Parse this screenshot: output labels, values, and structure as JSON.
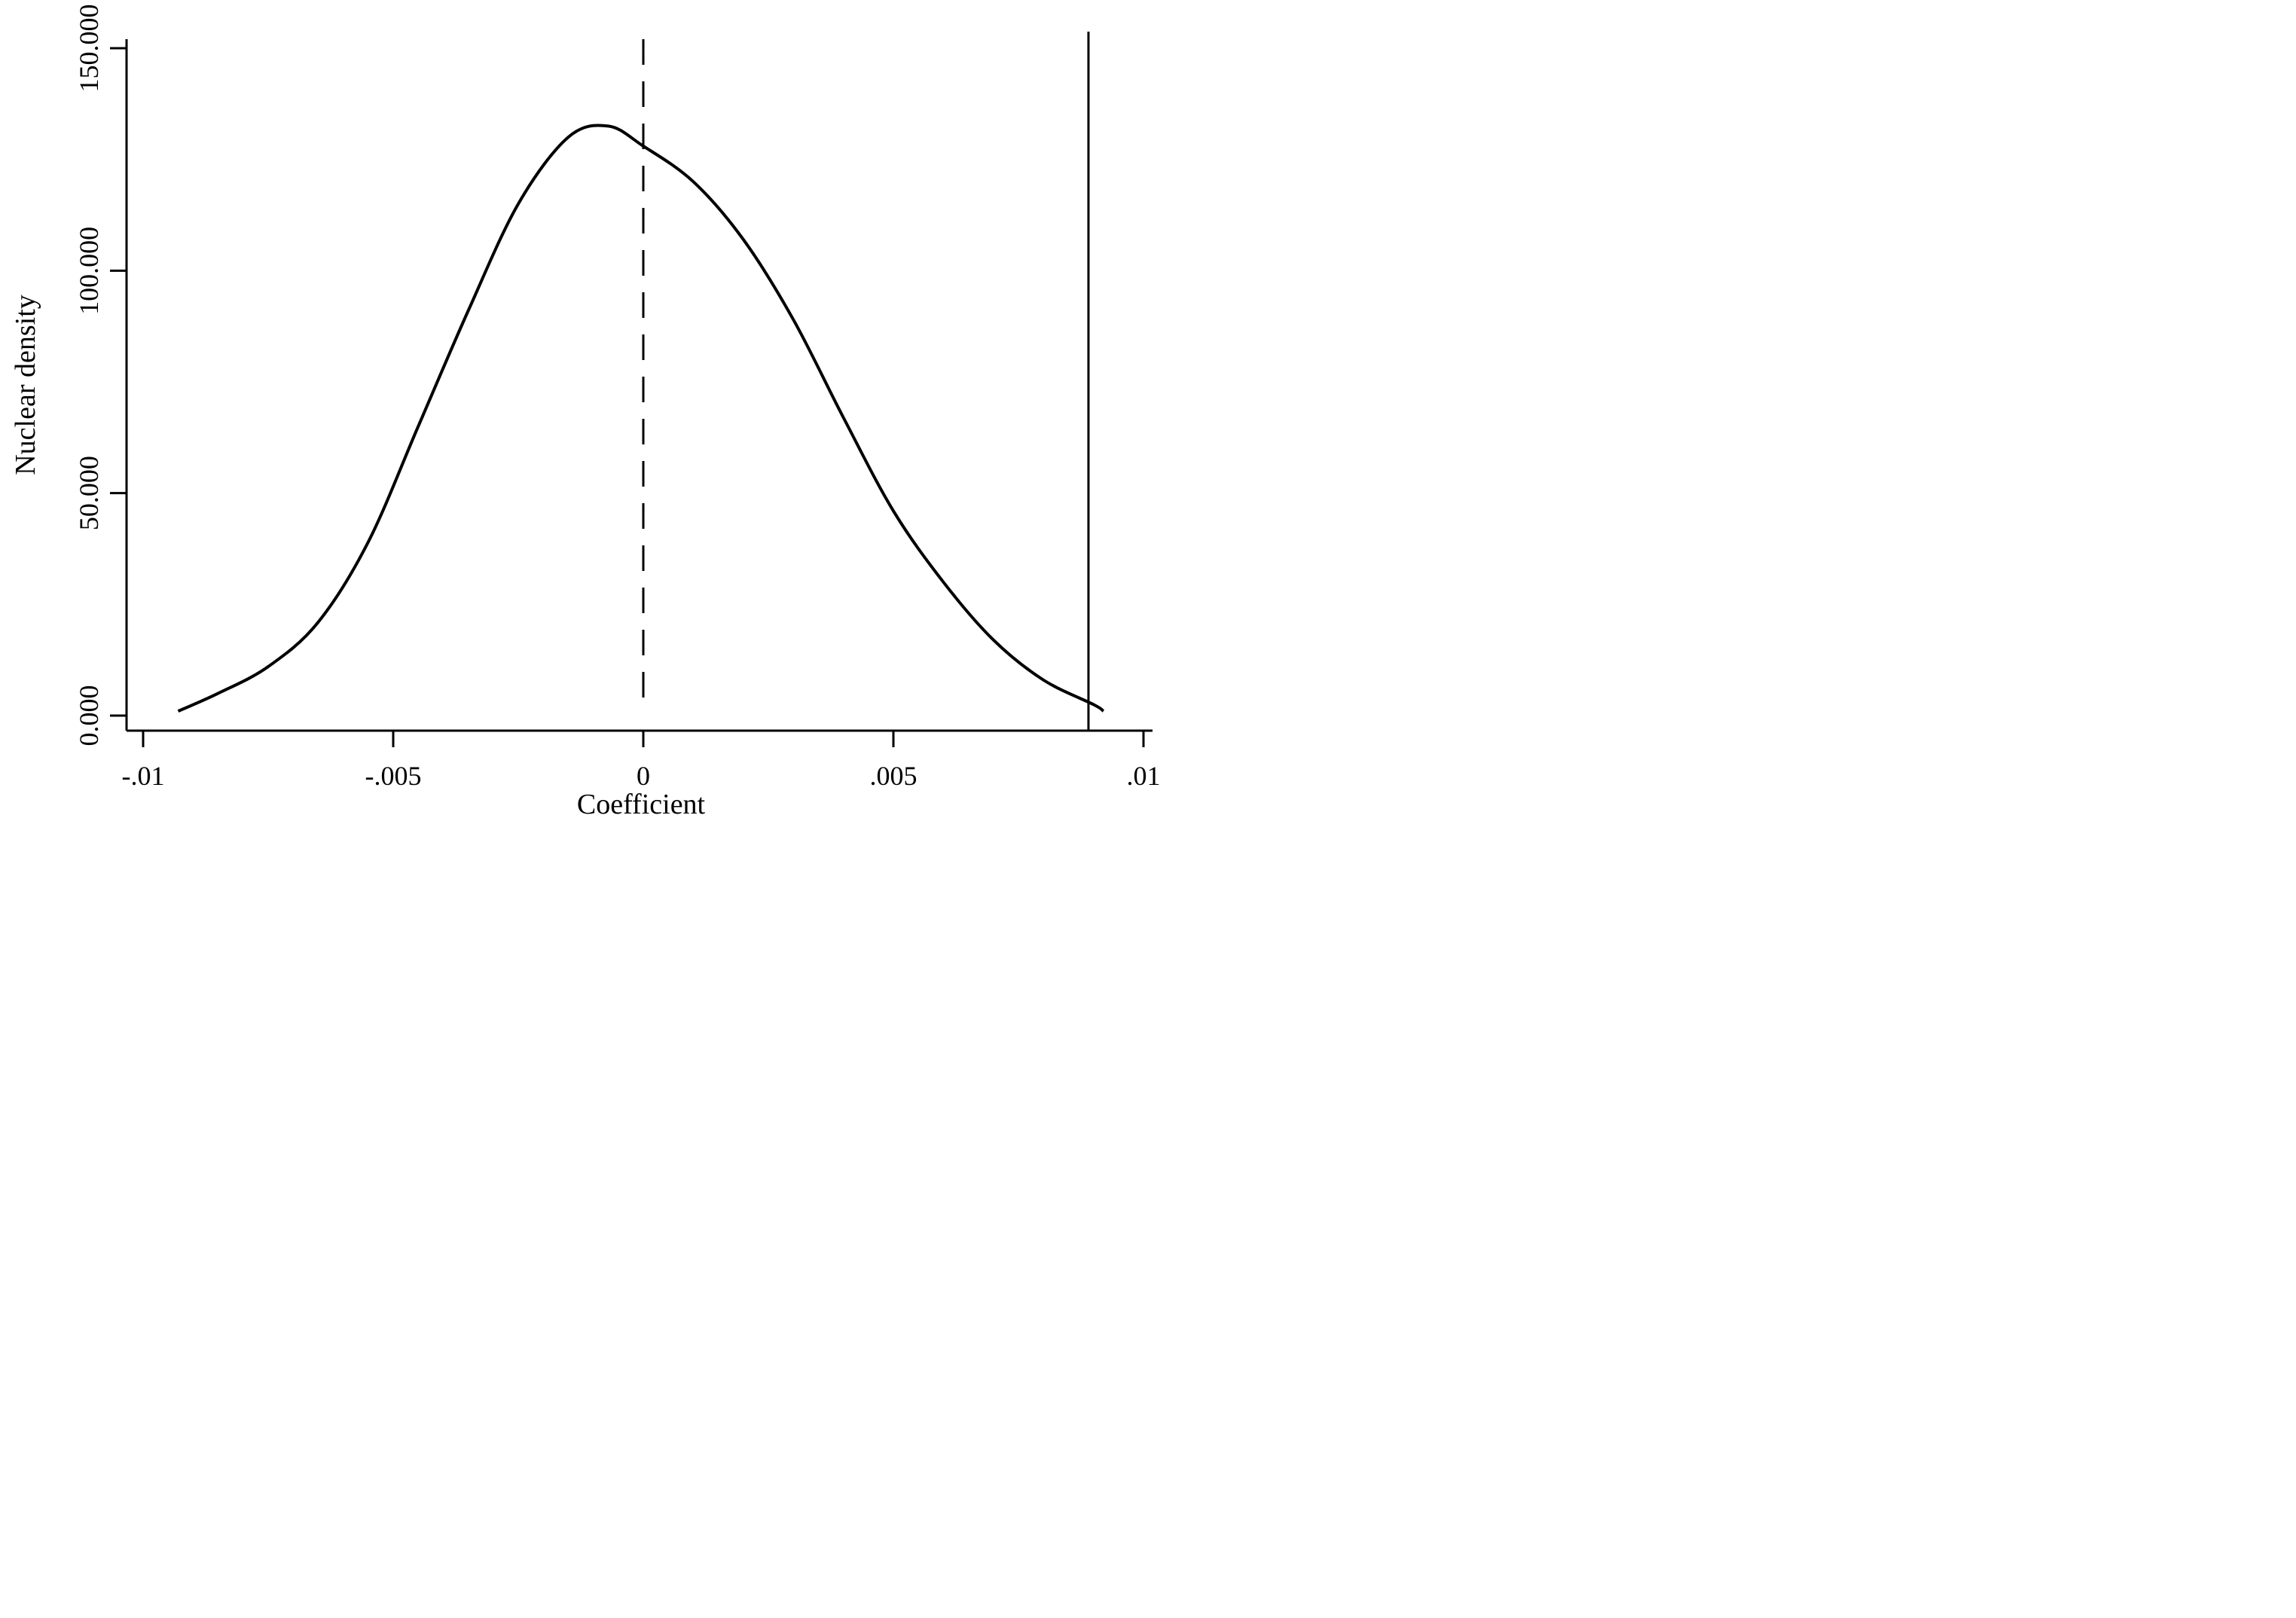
{
  "chart_data": {
    "type": "line",
    "title": "",
    "xlabel": "Coefficient",
    "ylabel": "Nuclear density",
    "xlim": [
      -0.01,
      0.01
    ],
    "ylim": [
      0,
      150000
    ],
    "x_ticks": [
      {
        "value": -0.01,
        "label": "-.01"
      },
      {
        "value": -0.005,
        "label": "-.005"
      },
      {
        "value": 0,
        "label": "0"
      },
      {
        "value": 0.005,
        "label": ".005"
      },
      {
        "value": 0.01,
        "label": ".01"
      }
    ],
    "y_ticks": [
      {
        "value": 0,
        "label": "0.000"
      },
      {
        "value": 50000,
        "label": "50.000"
      },
      {
        "value": 100000,
        "label": "100.000"
      },
      {
        "value": 150000,
        "label": "150.000"
      }
    ],
    "grid": false,
    "series": [
      {
        "style": "solid",
        "x": [
          -0.0093,
          -0.0085,
          -0.0075,
          -0.0065,
          -0.0055,
          -0.0045,
          -0.0035,
          -0.0025,
          -0.0015,
          -0.0007,
          0,
          0.001,
          0.002,
          0.003,
          0.004,
          0.005,
          0.006,
          0.007,
          0.008,
          0.009,
          0.0092
        ],
        "y": [
          1000,
          5000,
          11000,
          21000,
          39000,
          65000,
          91000,
          115000,
          130000,
          132500,
          128000,
          120000,
          107000,
          89000,
          67000,
          46000,
          30000,
          17000,
          8000,
          2500,
          1000
        ]
      }
    ],
    "reference_lines": [
      {
        "orientation": "vertical",
        "x": 0,
        "style": "dashed"
      },
      {
        "orientation": "vertical",
        "x": 0.0089,
        "style": "solid"
      }
    ]
  }
}
